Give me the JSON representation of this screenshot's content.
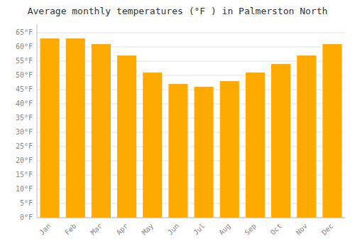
{
  "chart_data": {
    "type": "bar",
    "title": "Average monthly temperatures (°F ) in Palmerston North",
    "categories": [
      "Jan",
      "Feb",
      "Mar",
      "Apr",
      "May",
      "Jun",
      "Jul",
      "Aug",
      "Sep",
      "Oct",
      "Nov",
      "Dec"
    ],
    "values": [
      63,
      63,
      61,
      57,
      51,
      47,
      46,
      48,
      51,
      54,
      57,
      61
    ],
    "color": "#FFAA00",
    "ylim": [
      0,
      68
    ],
    "yticks": [
      {
        "value": 0,
        "label": "0°F"
      },
      {
        "value": 5,
        "label": "5°F"
      },
      {
        "value": 10,
        "label": "10°F"
      },
      {
        "value": 15,
        "label": "15°F"
      },
      {
        "value": 20,
        "label": "20°F"
      },
      {
        "value": 25,
        "label": "25°F"
      },
      {
        "value": 30,
        "label": "30°F"
      },
      {
        "value": 35,
        "label": "35°F"
      },
      {
        "value": 40,
        "label": "40°F"
      },
      {
        "value": 45,
        "label": "45°F"
      },
      {
        "value": 50,
        "label": "50°F"
      },
      {
        "value": 55,
        "label": "55°F"
      },
      {
        "value": 60,
        "label": "60°F"
      },
      {
        "value": 65,
        "label": "65°F"
      }
    ],
    "grid": true
  }
}
